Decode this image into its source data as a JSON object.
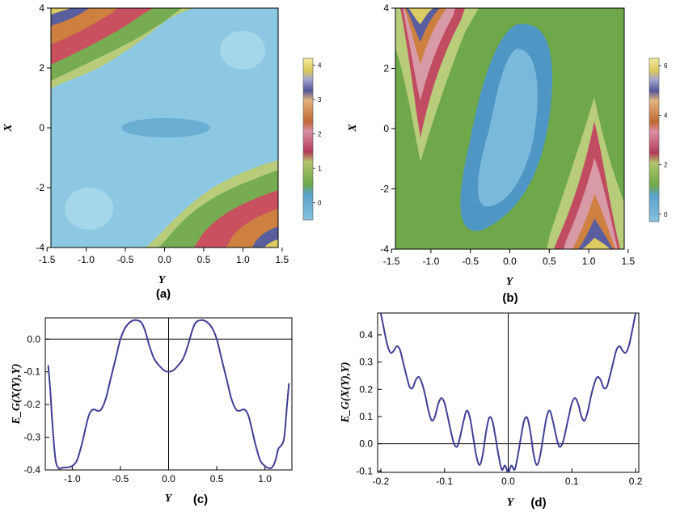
{
  "panels": {
    "a": "(a)",
    "b": "(b)",
    "c": "(c)",
    "d": "(d)"
  },
  "chart_data": [
    {
      "type": "heatmap",
      "panel": "(a)",
      "xlabel": "Y",
      "ylabel": "X",
      "xlim": [
        -1.45,
        1.45
      ],
      "ylim": [
        -4,
        4
      ],
      "x_ticks": [
        "-1.5",
        "-1.0",
        "-0.5",
        "0.0",
        "0.5",
        "1.0",
        "1.5"
      ],
      "y_ticks": [
        "-4",
        "-2",
        "0",
        "2",
        "4"
      ],
      "colorbar_ticks": [
        "0",
        "1",
        "2",
        "3",
        "4"
      ],
      "colorbar_range": [
        -0.5,
        4.2
      ]
    },
    {
      "type": "heatmap",
      "panel": "(b)",
      "xlabel": "Y",
      "ylabel": "X",
      "xlim": [
        -1.45,
        1.45
      ],
      "ylim": [
        -4,
        4
      ],
      "x_ticks": [
        "-1.5",
        "-1.0",
        "-0.5",
        "0.0",
        "0.5",
        "1.0",
        "1.5"
      ],
      "y_ticks": [
        "-4",
        "-2",
        "0",
        "2",
        "4"
      ],
      "colorbar_ticks": [
        "0",
        "2",
        "4",
        "6"
      ],
      "colorbar_range": [
        -0.3,
        6.3
      ]
    },
    {
      "type": "line",
      "panel": "(c)",
      "xlabel": "Y",
      "ylabel": "E_G(X(Y),Y)",
      "xlim": [
        -1.28,
        1.28
      ],
      "ylim": [
        -0.4,
        0.065
      ],
      "x_ticks": [
        "-1.0",
        "-0.5",
        "0.0",
        "0.5",
        "1.0"
      ],
      "y_ticks": [
        "0.0",
        "-0.1",
        "-0.2",
        "-0.3",
        "-0.4"
      ],
      "series": [
        {
          "name": "E_G",
          "x": [
            -1.25,
            -1.23,
            -1.21,
            -1.19,
            -1.17,
            -1.14,
            -1.1,
            -1.05,
            -1.0,
            -0.95,
            -0.9,
            -0.86,
            -0.83,
            -0.8,
            -0.77,
            -0.74,
            -0.7,
            -0.65,
            -0.6,
            -0.55,
            -0.5,
            -0.45,
            -0.4,
            -0.35,
            -0.3,
            -0.27,
            -0.24,
            -0.2,
            -0.15,
            -0.1,
            -0.05,
            0.0,
            0.05,
            0.1,
            0.15,
            0.2,
            0.24,
            0.27,
            0.3,
            0.35,
            0.4,
            0.45,
            0.5,
            0.55,
            0.6,
            0.65,
            0.7,
            0.74,
            0.77,
            0.8,
            0.83,
            0.86,
            0.9,
            0.95,
            1.0,
            1.05,
            1.08,
            1.11,
            1.14,
            1.17,
            1.2,
            1.23,
            1.25
          ],
          "y": [
            -0.08,
            -0.15,
            -0.24,
            -0.32,
            -0.375,
            -0.395,
            -0.393,
            -0.392,
            -0.388,
            -0.37,
            -0.32,
            -0.27,
            -0.235,
            -0.218,
            -0.215,
            -0.219,
            -0.215,
            -0.18,
            -0.12,
            -0.06,
            0.0,
            0.035,
            0.052,
            0.058,
            0.055,
            0.045,
            0.022,
            -0.02,
            -0.06,
            -0.08,
            -0.095,
            -0.1,
            -0.095,
            -0.08,
            -0.06,
            -0.02,
            0.022,
            0.045,
            0.055,
            0.058,
            0.052,
            0.035,
            0.0,
            -0.06,
            -0.12,
            -0.18,
            -0.215,
            -0.219,
            -0.215,
            -0.218,
            -0.235,
            -0.27,
            -0.32,
            -0.37,
            -0.388,
            -0.395,
            -0.39,
            -0.37,
            -0.335,
            -0.325,
            -0.3,
            -0.2,
            -0.135
          ]
        }
      ]
    },
    {
      "type": "line",
      "panel": "(d)",
      "xlabel": "Y",
      "ylabel": "E_G(X(Y),Y)",
      "xlim": [
        -0.205,
        0.205
      ],
      "ylim": [
        -0.105,
        0.48
      ],
      "x_ticks": [
        "-0.2",
        "-0.1",
        "0.0",
        "0.1",
        "0.2"
      ],
      "y_ticks": [
        "0.4",
        "0.3",
        "0.2",
        "0.1",
        "0.0",
        "-0.1"
      ],
      "series": [
        {
          "name": "E_G",
          "x": [
            -0.2,
            -0.195,
            -0.19,
            -0.185,
            -0.18,
            -0.175,
            -0.17,
            -0.165,
            -0.16,
            -0.155,
            -0.15,
            -0.145,
            -0.14,
            -0.135,
            -0.13,
            -0.125,
            -0.12,
            -0.115,
            -0.11,
            -0.105,
            -0.1,
            -0.095,
            -0.09,
            -0.085,
            -0.08,
            -0.075,
            -0.07,
            -0.065,
            -0.06,
            -0.055,
            -0.05,
            -0.045,
            -0.04,
            -0.035,
            -0.03,
            -0.025,
            -0.02,
            -0.015,
            -0.01,
            -0.005,
            0.0,
            0.005,
            0.01,
            0.015,
            0.02,
            0.025,
            0.03,
            0.035,
            0.04,
            0.045,
            0.05,
            0.055,
            0.06,
            0.065,
            0.07,
            0.075,
            0.08,
            0.085,
            0.09,
            0.095,
            0.1,
            0.105,
            0.11,
            0.115,
            0.12,
            0.125,
            0.13,
            0.135,
            0.14,
            0.145,
            0.15,
            0.155,
            0.16,
            0.165,
            0.17,
            0.175,
            0.18,
            0.185,
            0.19,
            0.195,
            0.2
          ],
          "y": [
            0.48,
            0.42,
            0.365,
            0.335,
            0.34,
            0.358,
            0.345,
            0.3,
            0.252,
            0.21,
            0.205,
            0.235,
            0.245,
            0.22,
            0.175,
            0.12,
            0.085,
            0.1,
            0.145,
            0.168,
            0.15,
            0.1,
            0.045,
            0.0,
            -0.01,
            0.03,
            0.085,
            0.122,
            0.095,
            0.025,
            -0.045,
            -0.078,
            -0.04,
            0.04,
            0.095,
            0.085,
            0.025,
            -0.045,
            -0.095,
            -0.08,
            -0.105,
            -0.08,
            -0.095,
            -0.045,
            0.025,
            0.085,
            0.095,
            0.04,
            -0.04,
            -0.078,
            -0.045,
            0.025,
            0.095,
            0.122,
            0.085,
            0.03,
            -0.01,
            0.0,
            0.045,
            0.1,
            0.15,
            0.168,
            0.145,
            0.1,
            0.085,
            0.12,
            0.175,
            0.22,
            0.245,
            0.235,
            0.205,
            0.21,
            0.252,
            0.3,
            0.345,
            0.358,
            0.34,
            0.335,
            0.365,
            0.42,
            0.48
          ]
        }
      ]
    }
  ]
}
